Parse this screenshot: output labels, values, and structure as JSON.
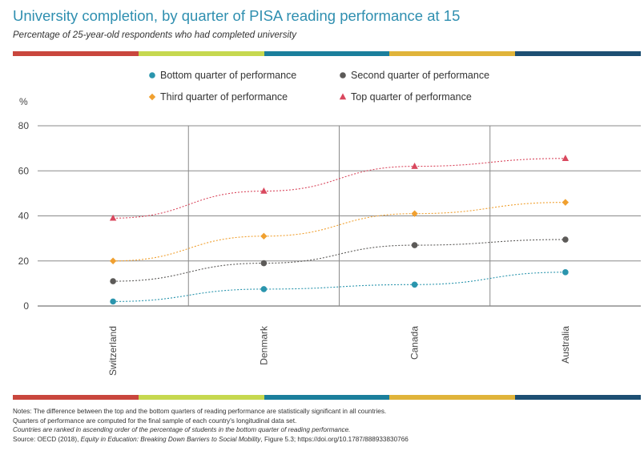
{
  "title": "University completion, by quarter of PISA reading performance at 15",
  "subtitle": "Percentage of 25-year-old respondents who had completed university",
  "colorbar": [
    "#c9463d",
    "#c6d84f",
    "#1b7f9c",
    "#e0b43a",
    "#1d4f73"
  ],
  "chart_data": {
    "type": "line",
    "categories": [
      "Switzerland",
      "Denmark",
      "Canada",
      "Australia"
    ],
    "ylabel": "%",
    "ylim": [
      0,
      80
    ],
    "yticks": [
      0,
      20,
      40,
      60,
      80
    ],
    "grid": true,
    "legend_placement": "top",
    "series": [
      {
        "name": "Bottom quarter of performance",
        "values": [
          2,
          7.5,
          9.5,
          15
        ],
        "color": "#2a95ad",
        "marker": "circle"
      },
      {
        "name": "Second quarter of performance",
        "values": [
          11,
          19,
          27,
          29.5
        ],
        "color": "#5c5a58",
        "marker": "circle"
      },
      {
        "name": "Third quarter of performance",
        "values": [
          20,
          31,
          41,
          46
        ],
        "color": "#f0a030",
        "marker": "diamond"
      },
      {
        "name": "Top quarter of performance",
        "values": [
          39,
          51,
          62,
          65.5
        ],
        "color": "#d9485e",
        "marker": "triangle"
      }
    ]
  },
  "notes": {
    "line1": "Notes: The difference between the top and the bottom quarters of reading performance are statistically significant in all countries.",
    "line2": "Quarters of performance are computed for the final sample of each country's longitudinal data set.",
    "line3": "Countries are ranked in ascending order of the percentage of students in the bottom quarter of reading performance.",
    "source_prefix": "Source: OECD (2018), ",
    "source_title": "Equity in Education: Breaking Down Barriers to Social Mobility",
    "source_suffix": ", Figure 5.3; https://doi.org/10.1787/888933830766"
  }
}
